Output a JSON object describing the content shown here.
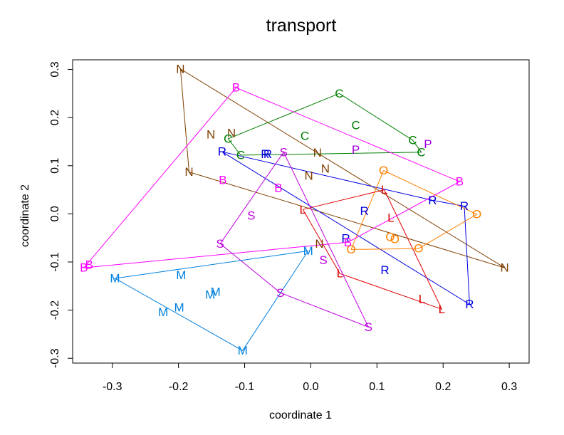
{
  "chart_data": {
    "type": "scatter",
    "title": "transport",
    "xlabel": "coordinate 1",
    "ylabel": "coordinate 2",
    "xlim": [
      -0.36,
      0.33
    ],
    "ylim": [
      -0.31,
      0.32
    ],
    "xticks": [
      -0.3,
      -0.2,
      -0.1,
      0.0,
      0.1,
      0.2,
      0.3
    ],
    "yticks": [
      -0.3,
      -0.2,
      -0.1,
      0.0,
      0.1,
      0.2,
      0.3
    ],
    "xtick_labels": [
      "-0.3",
      "-0.2",
      "-0.1",
      "0.0",
      "0.1",
      "0.2",
      "0.3"
    ],
    "ytick_labels": [
      "-0.3",
      "-0.2",
      "-0.1",
      "0.0",
      "0.1",
      "0.2",
      "0.3"
    ],
    "series": [
      {
        "name": "N",
        "color": "#7f3f00",
        "points": [
          [
            -0.197,
            0.301
          ],
          [
            -0.151,
            0.165
          ],
          [
            -0.12,
            0.168
          ],
          [
            -0.184,
            0.087
          ],
          [
            0.01,
            0.127
          ],
          [
            -0.003,
            0.079
          ],
          [
            0.022,
            0.094
          ],
          [
            0.013,
            -0.062
          ],
          [
            0.293,
            -0.112
          ]
        ],
        "hull": [
          [
            -0.197,
            0.301
          ],
          [
            0.293,
            -0.112
          ],
          [
            -0.184,
            0.087
          ],
          [
            -0.197,
            0.301
          ]
        ]
      },
      {
        "name": "C",
        "color": "#007f00",
        "points": [
          [
            0.043,
            0.25
          ],
          [
            0.068,
            0.184
          ],
          [
            -0.125,
            0.156
          ],
          [
            -0.009,
            0.162
          ],
          [
            0.154,
            0.153
          ],
          [
            -0.106,
            0.122
          ],
          [
            0.167,
            0.128
          ]
        ],
        "hull": [
          [
            0.043,
            0.25
          ],
          [
            0.154,
            0.153
          ],
          [
            0.167,
            0.128
          ],
          [
            -0.106,
            0.122
          ],
          [
            -0.125,
            0.156
          ],
          [
            0.043,
            0.25
          ]
        ]
      },
      {
        "name": "P",
        "color": "#9f00df",
        "points": [
          [
            0.177,
            0.145
          ],
          [
            0.068,
            0.133
          ]
        ],
        "hull": []
      },
      {
        "name": "R",
        "color": "#0000df",
        "points": [
          [
            -0.134,
            0.129
          ],
          [
            -0.069,
            0.124
          ],
          [
            -0.065,
            0.124
          ],
          [
            0.081,
            0.006
          ],
          [
            0.184,
            0.028
          ],
          [
            0.232,
            0.016
          ],
          [
            0.053,
            -0.051
          ],
          [
            0.112,
            -0.117
          ],
          [
            0.24,
            -0.188
          ]
        ],
        "hull": [
          [
            -0.134,
            0.129
          ],
          [
            0.184,
            0.028
          ],
          [
            0.232,
            0.016
          ],
          [
            0.24,
            -0.188
          ],
          [
            -0.134,
            0.129
          ]
        ]
      },
      {
        "name": "L",
        "color": "#df0000",
        "points": [
          [
            0.111,
            0.05
          ],
          [
            0.121,
            -0.008
          ],
          [
            -0.012,
            0.009
          ],
          [
            0.044,
            -0.124
          ],
          [
            0.168,
            -0.177
          ],
          [
            0.198,
            -0.198
          ]
        ],
        "hull": [
          [
            -0.012,
            0.009
          ],
          [
            0.111,
            0.05
          ],
          [
            0.198,
            -0.198
          ],
          [
            0.044,
            -0.124
          ],
          [
            -0.012,
            0.009
          ]
        ]
      },
      {
        "name": "O",
        "color": "#ff7f00",
        "points": [
          [
            0.11,
            0.09
          ],
          [
            0.251,
            -0.001
          ],
          [
            0.12,
            -0.048
          ],
          [
            0.127,
            -0.053
          ],
          [
            0.163,
            -0.072
          ],
          [
            0.061,
            -0.074
          ]
        ],
        "hull": [
          [
            0.11,
            0.09
          ],
          [
            0.251,
            -0.001
          ],
          [
            0.163,
            -0.072
          ],
          [
            0.061,
            -0.074
          ],
          [
            0.11,
            0.09
          ]
        ]
      },
      {
        "name": "B",
        "color": "#ff00ff",
        "points": [
          [
            -0.113,
            0.262
          ],
          [
            0.225,
            0.067
          ],
          [
            -0.133,
            0.07
          ],
          [
            -0.049,
            0.054
          ],
          [
            0.056,
            -0.059
          ],
          [
            -0.335,
            -0.106
          ],
          [
            -0.343,
            -0.112
          ]
        ],
        "hull": [
          [
            -0.113,
            0.262
          ],
          [
            0.225,
            0.067
          ],
          [
            0.056,
            -0.059
          ],
          [
            -0.343,
            -0.112
          ],
          [
            -0.113,
            0.262
          ]
        ]
      },
      {
        "name": "S",
        "color": "#bf00df",
        "points": [
          [
            -0.041,
            0.128
          ],
          [
            -0.09,
            -0.004
          ],
          [
            -0.137,
            -0.062
          ],
          [
            0.019,
            -0.096
          ],
          [
            -0.046,
            -0.164
          ],
          [
            0.087,
            -0.235
          ]
        ],
        "hull": [
          [
            -0.041,
            0.128
          ],
          [
            0.087,
            -0.235
          ],
          [
            -0.046,
            -0.164
          ],
          [
            -0.137,
            -0.062
          ],
          [
            -0.041,
            0.128
          ]
        ]
      },
      {
        "name": "M",
        "color": "#0080df",
        "points": [
          [
            -0.004,
            -0.077
          ],
          [
            -0.196,
            -0.127
          ],
          [
            -0.296,
            -0.134
          ],
          [
            -0.144,
            -0.162
          ],
          [
            -0.152,
            -0.168
          ],
          [
            -0.199,
            -0.195
          ],
          [
            -0.223,
            -0.204
          ],
          [
            -0.103,
            -0.284
          ]
        ],
        "hull": [
          [
            -0.004,
            -0.077
          ],
          [
            -0.103,
            -0.284
          ],
          [
            -0.296,
            -0.134
          ],
          [
            -0.004,
            -0.077
          ]
        ]
      }
    ]
  }
}
